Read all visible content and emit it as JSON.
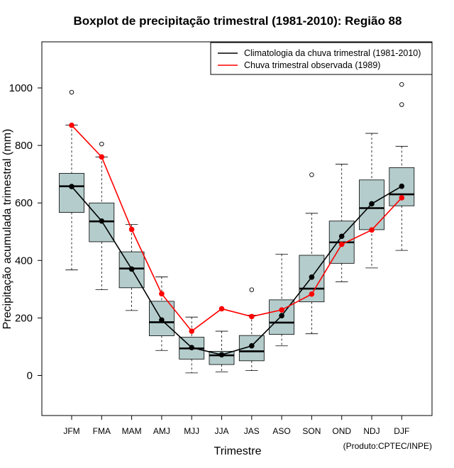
{
  "chart_data": {
    "type": "boxplot",
    "title": "Boxplot de precipitação trimestral (1981-2010): Região 88",
    "xlabel": "Trimestre",
    "ylabel": "Precipitação acumulada trimestral (mm)",
    "credit": "(Produto:CPTEC/INPE)",
    "ylim": [
      -140,
      1150
    ],
    "yticks": [
      0,
      200,
      400,
      600,
      800,
      1000
    ],
    "categories": [
      "JFM",
      "FMA",
      "MAM",
      "AMJ",
      "MJJ",
      "JJA",
      "JAS",
      "ASO",
      "SON",
      "OND",
      "NDJ",
      "DJF"
    ],
    "boxes": [
      {
        "min": 367,
        "q1": 567,
        "median": 658,
        "q3": 703,
        "max": 871,
        "outliers": [
          985
        ]
      },
      {
        "min": 298,
        "q1": 465,
        "median": 536,
        "q3": 600,
        "max": 760,
        "outliers": [
          805
        ]
      },
      {
        "min": 226,
        "q1": 305,
        "median": 372,
        "q3": 430,
        "max": 525,
        "outliers": []
      },
      {
        "min": 87,
        "q1": 138,
        "median": 185,
        "q3": 258,
        "max": 343,
        "outliers": []
      },
      {
        "min": 9,
        "q1": 57,
        "median": 94,
        "q3": 133,
        "max": 203,
        "outliers": []
      },
      {
        "min": 12,
        "q1": 38,
        "median": 70,
        "q3": 84,
        "max": 154,
        "outliers": []
      },
      {
        "min": 17,
        "q1": 51,
        "median": 84,
        "q3": 139,
        "max": 210,
        "outliers": [
          298
        ]
      },
      {
        "min": 103,
        "q1": 143,
        "median": 184,
        "q3": 263,
        "max": 422,
        "outliers": []
      },
      {
        "min": 145,
        "q1": 256,
        "median": 302,
        "q3": 418,
        "max": 564,
        "outliers": [
          698
        ]
      },
      {
        "min": 326,
        "q1": 390,
        "median": 463,
        "q3": 537,
        "max": 735,
        "outliers": []
      },
      {
        "min": 374,
        "q1": 507,
        "median": 582,
        "q3": 680,
        "max": 842,
        "outliers": []
      },
      {
        "min": 435,
        "q1": 590,
        "median": 630,
        "q3": 723,
        "max": 797,
        "outliers": [
          942,
          1012
        ]
      }
    ],
    "series": [
      {
        "name": "Climatologia da chuva trimestral (1981-2010)",
        "color": "#000000",
        "values": [
          657,
          537,
          370,
          193,
          97,
          72,
          103,
          208,
          342,
          484,
          597,
          658
        ]
      },
      {
        "name": "Chuva trimestral observada (1989)",
        "color": "#ff0000",
        "values": [
          870,
          760,
          508,
          284,
          154,
          232,
          205,
          228,
          283,
          456,
          506,
          618
        ]
      }
    ],
    "box_fill": "#b4cccc",
    "legend_position": "top-right"
  }
}
